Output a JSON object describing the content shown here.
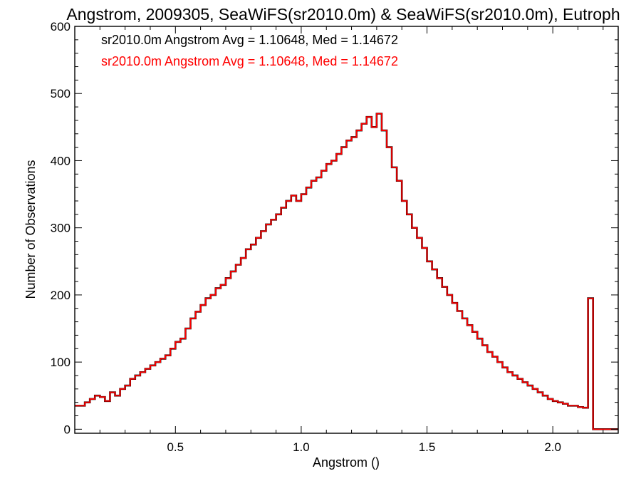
{
  "chart_data": {
    "type": "line",
    "title": "Angstrom, 2009305, SeaWiFS(sr2010.0m) & SeaWiFS(sr2010.0m), Eutroph",
    "xlabel": "Angstrom ()",
    "ylabel": "Number of Observations",
    "xlim": [
      0.1,
      2.26
    ],
    "ylim": [
      -6,
      600
    ],
    "x_ticks": [
      0.5,
      1.0,
      1.5,
      2.0
    ],
    "x_tick_labels": [
      "0.5",
      "1.0",
      "1.5",
      "2.0"
    ],
    "y_ticks": [
      0,
      100,
      200,
      300,
      400,
      500,
      600
    ],
    "y_tick_labels": [
      "0",
      "100",
      "200",
      "300",
      "400",
      "500",
      "600"
    ],
    "grid": false,
    "legend_position": "top-left",
    "annotations": [
      {
        "text": "sr2010.0m Angstrom Avg = 1.10648, Med = 1.14672",
        "color": "#000000"
      },
      {
        "text": "sr2010.0m Angstrom Avg = 1.10648, Med = 1.14672",
        "color": "#ff0000"
      }
    ],
    "series_color": "#ff0000",
    "series_overlay_color": "#000000",
    "step_histogram": true,
    "series": [
      {
        "points": [
          [
            0.1,
            35
          ],
          [
            0.14,
            40
          ],
          [
            0.16,
            45
          ],
          [
            0.18,
            50
          ],
          [
            0.2,
            48
          ],
          [
            0.22,
            42
          ],
          [
            0.24,
            55
          ],
          [
            0.26,
            50
          ],
          [
            0.28,
            60
          ],
          [
            0.3,
            65
          ],
          [
            0.32,
            75
          ],
          [
            0.34,
            80
          ],
          [
            0.36,
            85
          ],
          [
            0.38,
            90
          ],
          [
            0.4,
            95
          ],
          [
            0.42,
            100
          ],
          [
            0.44,
            105
          ],
          [
            0.46,
            110
          ],
          [
            0.48,
            120
          ],
          [
            0.5,
            130
          ],
          [
            0.52,
            135
          ],
          [
            0.54,
            150
          ],
          [
            0.56,
            165
          ],
          [
            0.58,
            175
          ],
          [
            0.6,
            185
          ],
          [
            0.62,
            195
          ],
          [
            0.64,
            200
          ],
          [
            0.66,
            210
          ],
          [
            0.68,
            215
          ],
          [
            0.7,
            225
          ],
          [
            0.72,
            235
          ],
          [
            0.74,
            245
          ],
          [
            0.76,
            255
          ],
          [
            0.78,
            268
          ],
          [
            0.8,
            275
          ],
          [
            0.82,
            285
          ],
          [
            0.84,
            295
          ],
          [
            0.86,
            305
          ],
          [
            0.88,
            312
          ],
          [
            0.9,
            320
          ],
          [
            0.92,
            330
          ],
          [
            0.94,
            340
          ],
          [
            0.96,
            348
          ],
          [
            0.98,
            340
          ],
          [
            1.0,
            350
          ],
          [
            1.02,
            360
          ],
          [
            1.04,
            370
          ],
          [
            1.06,
            375
          ],
          [
            1.08,
            385
          ],
          [
            1.1,
            395
          ],
          [
            1.12,
            400
          ],
          [
            1.14,
            410
          ],
          [
            1.16,
            420
          ],
          [
            1.18,
            430
          ],
          [
            1.2,
            435
          ],
          [
            1.22,
            445
          ],
          [
            1.24,
            455
          ],
          [
            1.26,
            465
          ],
          [
            1.28,
            450
          ],
          [
            1.3,
            470
          ],
          [
            1.32,
            445
          ],
          [
            1.34,
            420
          ],
          [
            1.36,
            390
          ],
          [
            1.38,
            370
          ],
          [
            1.4,
            340
          ],
          [
            1.42,
            320
          ],
          [
            1.44,
            300
          ],
          [
            1.46,
            285
          ],
          [
            1.48,
            270
          ],
          [
            1.5,
            250
          ],
          [
            1.52,
            238
          ],
          [
            1.54,
            225
          ],
          [
            1.56,
            212
          ],
          [
            1.58,
            200
          ],
          [
            1.6,
            188
          ],
          [
            1.62,
            176
          ],
          [
            1.64,
            165
          ],
          [
            1.66,
            155
          ],
          [
            1.68,
            145
          ],
          [
            1.7,
            135
          ],
          [
            1.72,
            125
          ],
          [
            1.74,
            115
          ],
          [
            1.76,
            108
          ],
          [
            1.78,
            100
          ],
          [
            1.8,
            92
          ],
          [
            1.82,
            85
          ],
          [
            1.84,
            80
          ],
          [
            1.86,
            75
          ],
          [
            1.88,
            70
          ],
          [
            1.9,
            65
          ],
          [
            1.92,
            60
          ],
          [
            1.94,
            55
          ],
          [
            1.96,
            50
          ],
          [
            1.98,
            45
          ],
          [
            2.0,
            42
          ],
          [
            2.02,
            40
          ],
          [
            2.04,
            38
          ],
          [
            2.06,
            35
          ],
          [
            2.08,
            35
          ],
          [
            2.1,
            33
          ],
          [
            2.12,
            32
          ],
          [
            2.14,
            195
          ],
          [
            2.16,
            0
          ],
          [
            2.26,
            0
          ]
        ]
      }
    ]
  }
}
